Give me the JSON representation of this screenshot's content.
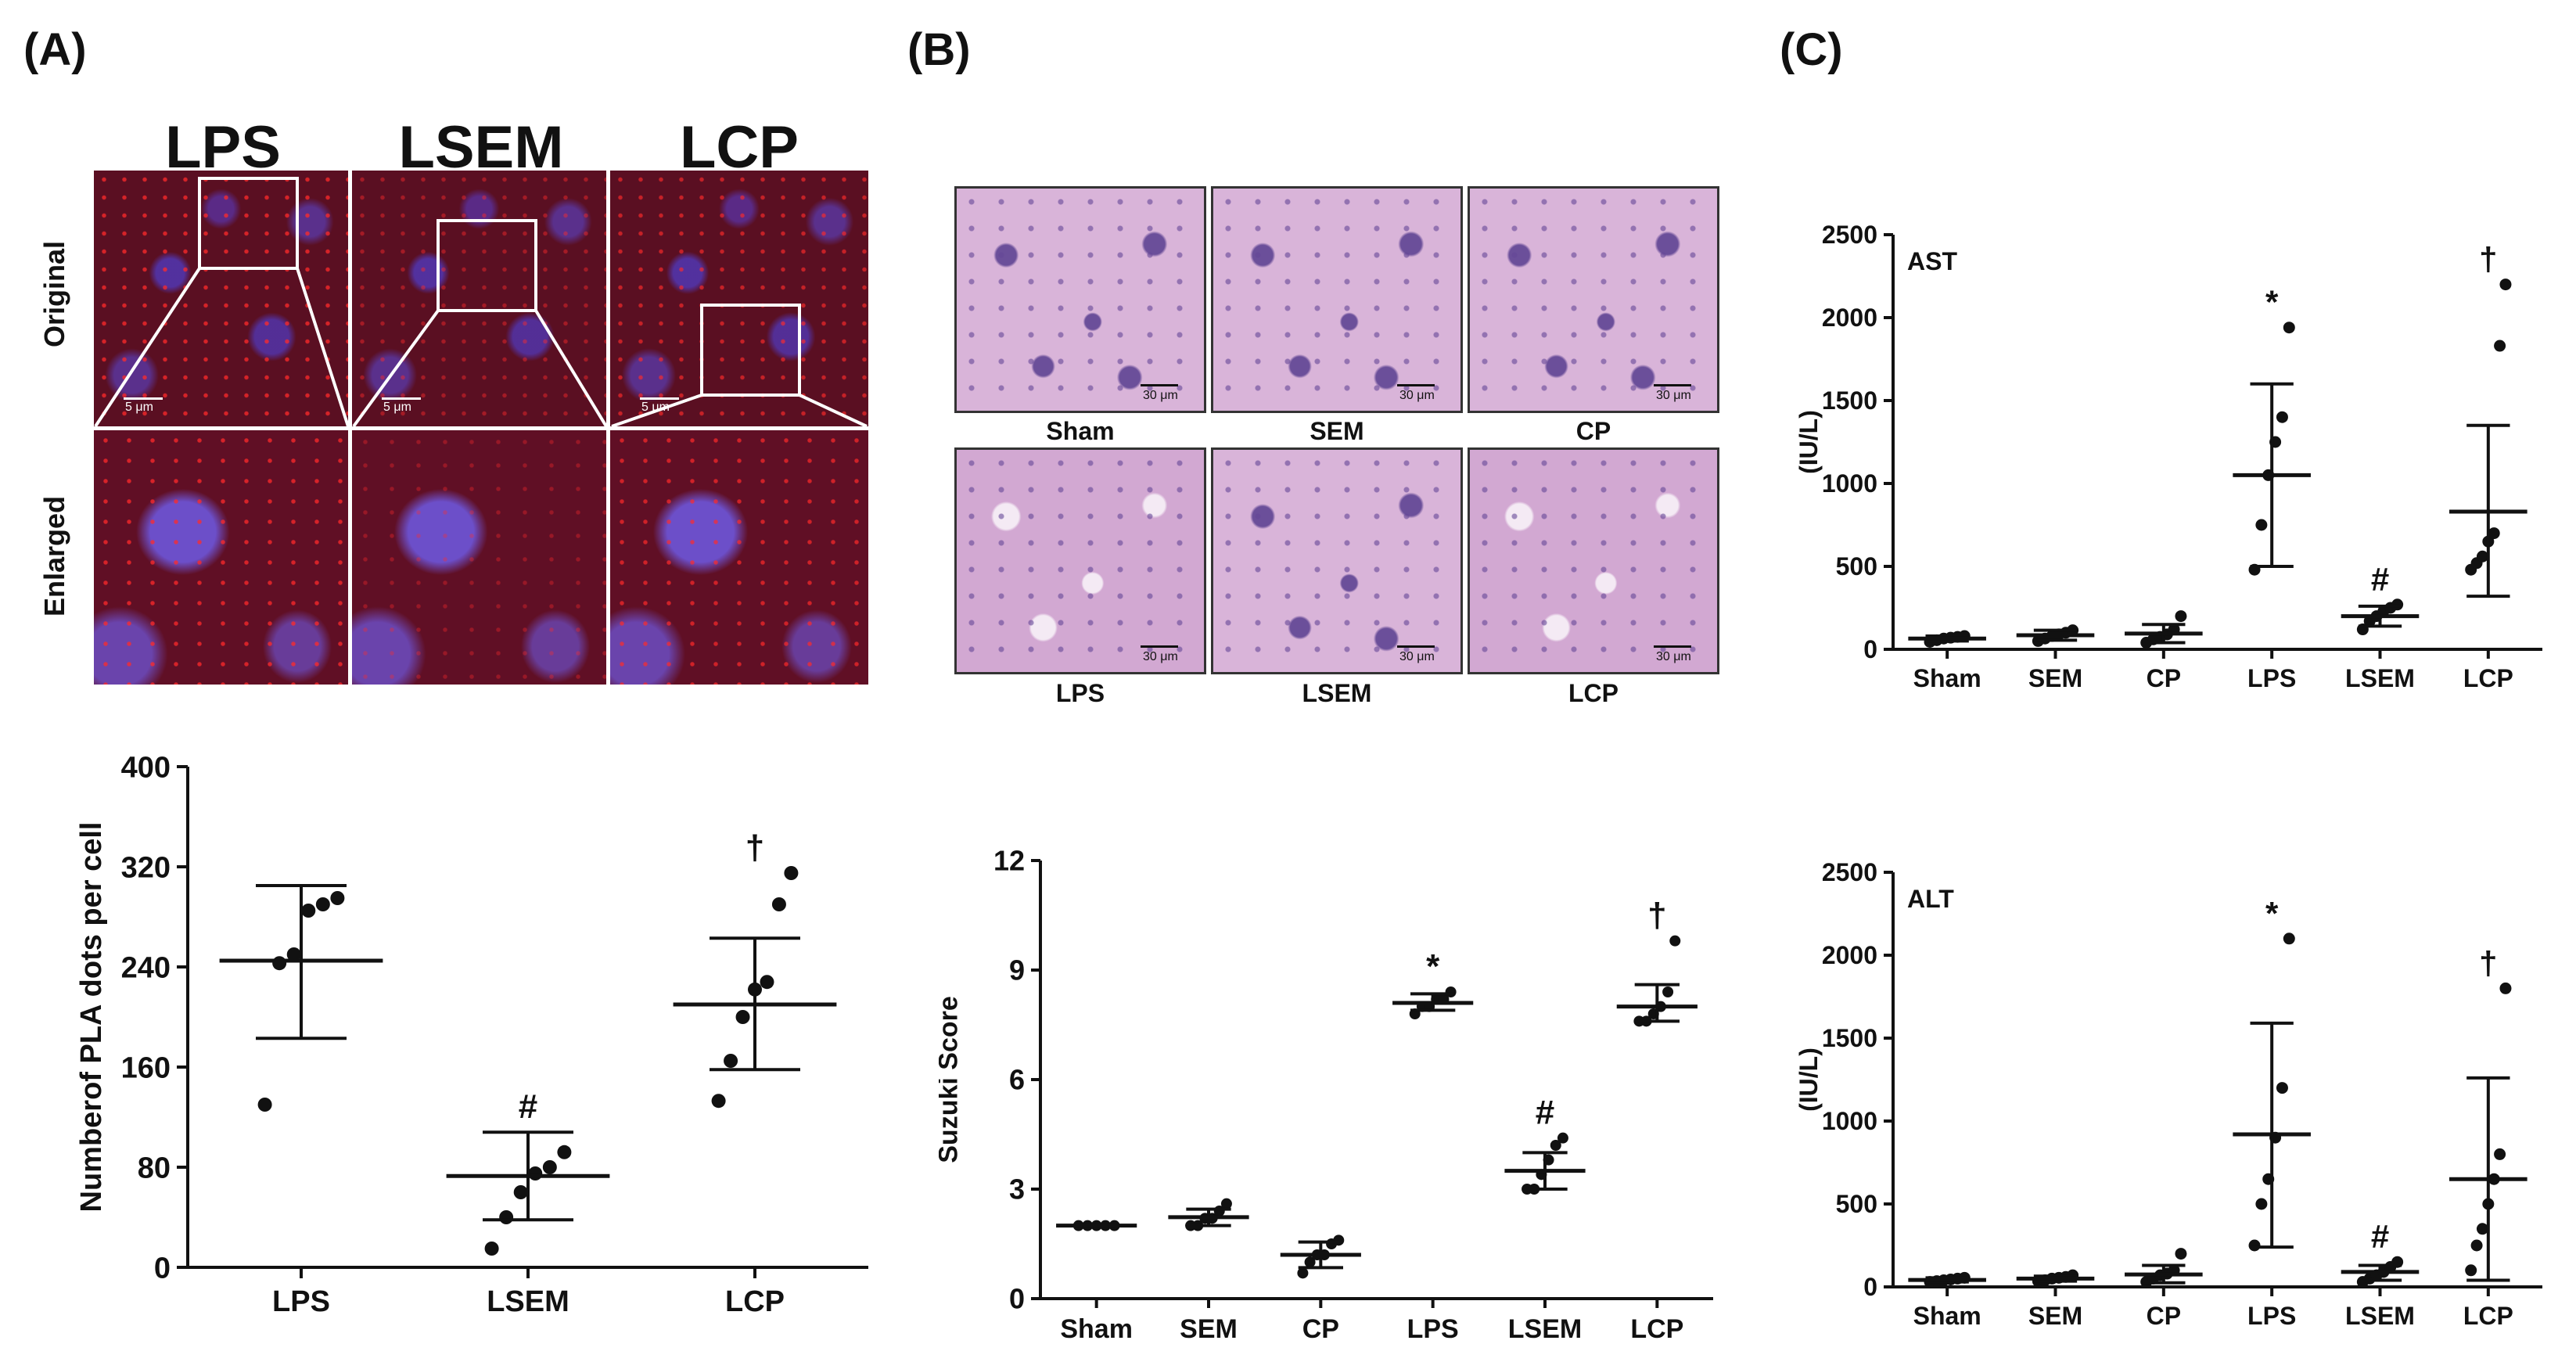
{
  "panels": {
    "a": "(A)",
    "b": "(B)",
    "c": "(C)"
  },
  "panel_a": {
    "groups": [
      "LPS",
      "LSEM",
      "LCP"
    ],
    "rows": [
      "Original",
      "Enlarged"
    ],
    "scale_label": "5 μm"
  },
  "panel_b": {
    "top_groups": [
      "Sham",
      "SEM",
      "CP"
    ],
    "bottom_groups": [
      "LPS",
      "LSEM",
      "LCP"
    ],
    "scale_labels": [
      "30 μm",
      "30 μm",
      "30 μm",
      "30 μm",
      "30 μm",
      "30 μm"
    ]
  },
  "colors": {
    "mark": "#111111",
    "red_dots": "#ff2a2a",
    "nuclei": "#5a46c8",
    "he_stain": "#d9b4d9"
  },
  "chart_data": [
    {
      "id": "pla",
      "type": "scatter",
      "title": "",
      "xlabel": "",
      "ylabel": "Numberof PLA dots per cell",
      "categories": [
        "LPS",
        "LSEM",
        "LCP"
      ],
      "ylim": [
        0,
        400
      ],
      "yticks": [
        "0",
        "80",
        "160",
        "240",
        "320",
        "400"
      ],
      "groups": [
        {
          "points": [
            130,
            243,
            250,
            285,
            290,
            295
          ],
          "mean": 245,
          "upper": 305,
          "lower": 183,
          "annotation": ""
        },
        {
          "points": [
            15,
            40,
            60,
            75,
            80,
            92
          ],
          "mean": 73,
          "upper": 108,
          "lower": 38,
          "annotation": "#"
        },
        {
          "points": [
            133,
            165,
            200,
            222,
            228,
            290,
            315
          ],
          "mean": 210,
          "upper": 263,
          "lower": 158,
          "annotation": "†"
        }
      ]
    },
    {
      "id": "suzuki",
      "type": "scatter",
      "title": "",
      "xlabel": "",
      "ylabel": "Suzuki Score",
      "categories": [
        "Sham",
        "SEM",
        "CP",
        "LPS",
        "LSEM",
        "LCP"
      ],
      "ylim": [
        0,
        12
      ],
      "yticks": [
        "0",
        "3",
        "6",
        "9",
        "12"
      ],
      "groups": [
        {
          "points": [
            2,
            2,
            2,
            2,
            2
          ],
          "mean": 2.0,
          "upper": 2.0,
          "lower": 2.0,
          "annotation": ""
        },
        {
          "points": [
            2.0,
            2.0,
            2.2,
            2.2,
            2.4,
            2.6
          ],
          "mean": 2.23,
          "upper": 2.45,
          "lower": 2.0,
          "annotation": ""
        },
        {
          "points": [
            0.7,
            1.0,
            1.2,
            1.2,
            1.5,
            1.6
          ],
          "mean": 1.2,
          "upper": 1.55,
          "lower": 0.85,
          "annotation": ""
        },
        {
          "points": [
            7.8,
            8.0,
            8.0,
            8.2,
            8.2,
            8.4
          ],
          "mean": 8.1,
          "upper": 8.35,
          "lower": 7.9,
          "annotation": "*"
        },
        {
          "points": [
            3.0,
            3.0,
            3.4,
            3.8,
            4.2,
            4.4
          ],
          "mean": 3.5,
          "upper": 4.0,
          "lower": 3.0,
          "annotation": "#"
        },
        {
          "points": [
            7.6,
            7.6,
            7.8,
            8.0,
            8.4,
            9.8
          ],
          "mean": 8.0,
          "upper": 8.6,
          "lower": 7.6,
          "annotation": "†"
        }
      ]
    },
    {
      "id": "ast",
      "type": "scatter",
      "title": "AST",
      "xlabel": "",
      "ylabel": "(IU/L)",
      "categories": [
        "Sham",
        "SEM",
        "CP",
        "LPS",
        "LSEM",
        "LCP"
      ],
      "ylim": [
        0,
        2500
      ],
      "yticks": [
        "0",
        "500",
        "1000",
        "1500",
        "2000",
        "2500"
      ],
      "groups": [
        {
          "points": [
            45,
            55,
            65,
            70,
            75,
            80
          ],
          "mean": 65,
          "upper": 80,
          "lower": 50,
          "annotation": ""
        },
        {
          "points": [
            50,
            65,
            80,
            90,
            100,
            115
          ],
          "mean": 85,
          "upper": 115,
          "lower": 55,
          "annotation": ""
        },
        {
          "points": [
            40,
            60,
            75,
            90,
            120,
            200
          ],
          "mean": 95,
          "upper": 150,
          "lower": 40,
          "annotation": ""
        },
        {
          "points": [
            480,
            750,
            1050,
            1250,
            1400,
            1940
          ],
          "mean": 1050,
          "upper": 1600,
          "lower": 500,
          "annotation": "*"
        },
        {
          "points": [
            120,
            170,
            200,
            230,
            250,
            270
          ],
          "mean": 200,
          "upper": 260,
          "lower": 140,
          "annotation": "#"
        },
        {
          "points": [
            480,
            520,
            560,
            650,
            700,
            1830,
            2200
          ],
          "mean": 830,
          "upper": 1350,
          "lower": 320,
          "annotation": "†"
        }
      ]
    },
    {
      "id": "alt",
      "type": "scatter",
      "title": "ALT",
      "xlabel": "",
      "ylabel": "(IU/L)",
      "categories": [
        "Sham",
        "SEM",
        "CP",
        "LPS",
        "LSEM",
        "LCP"
      ],
      "ylim": [
        0,
        2500
      ],
      "yticks": [
        "0",
        "500",
        "1000",
        "1500",
        "2000",
        "2500"
      ],
      "groups": [
        {
          "points": [
            30,
            35,
            40,
            45,
            50,
            55
          ],
          "mean": 42,
          "upper": 55,
          "lower": 30,
          "annotation": ""
        },
        {
          "points": [
            35,
            40,
            50,
            55,
            60,
            70
          ],
          "mean": 50,
          "upper": 65,
          "lower": 35,
          "annotation": ""
        },
        {
          "points": [
            30,
            50,
            70,
            80,
            100,
            200
          ],
          "mean": 75,
          "upper": 130,
          "lower": 25,
          "annotation": ""
        },
        {
          "points": [
            250,
            500,
            650,
            900,
            1200,
            2100
          ],
          "mean": 920,
          "upper": 1590,
          "lower": 240,
          "annotation": "*"
        },
        {
          "points": [
            30,
            50,
            70,
            90,
            120,
            150
          ],
          "mean": 90,
          "upper": 130,
          "lower": 40,
          "annotation": "#"
        },
        {
          "points": [
            100,
            250,
            350,
            500,
            650,
            800,
            1800
          ],
          "mean": 650,
          "upper": 1260,
          "lower": 40,
          "annotation": "†"
        }
      ]
    }
  ]
}
